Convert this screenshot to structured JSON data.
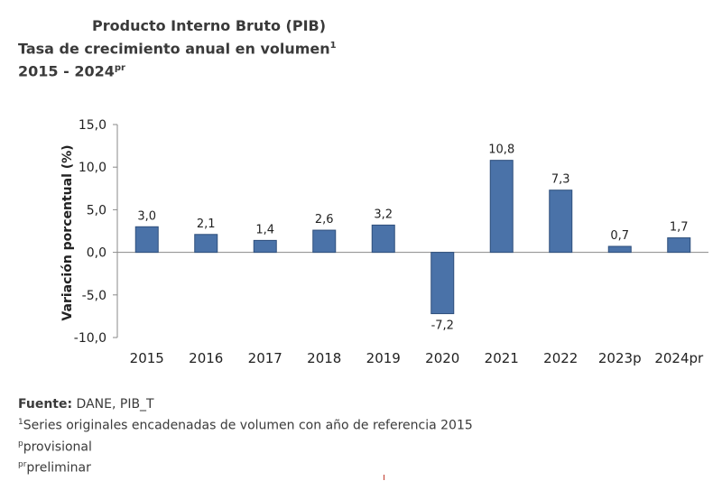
{
  "header": {
    "title_line1": "Producto Interno Bruto (PIB)",
    "title_line2": "Tasa de crecimiento anual en volumen",
    "title_line2_sup": "1",
    "title_line3": "2015 - 2024",
    "title_line3_sup": "pr"
  },
  "chart_data": {
    "type": "bar",
    "categories": [
      "2015",
      "2016",
      "2017",
      "2018",
      "2019",
      "2020",
      "2021",
      "2022",
      "2023p",
      "2024pr"
    ],
    "values": [
      3.0,
      2.1,
      1.4,
      2.6,
      3.2,
      -7.2,
      10.8,
      7.3,
      0.7,
      1.7
    ],
    "data_labels": [
      "3,0",
      "2,1",
      "1,4",
      "2,6",
      "3,2",
      "-7,2",
      "10,8",
      "7,3",
      "0,7",
      "1,7"
    ],
    "ylabel": "Variación porcentual (%)",
    "ylim": [
      -10,
      15
    ],
    "yticks": [
      15,
      10,
      5,
      0,
      -5,
      -10
    ],
    "ytick_labels": [
      "15,0",
      "10,0",
      "5,0",
      "0,0",
      "-5,0",
      "-10,0"
    ],
    "bar_color": "#4a72a8",
    "bar_edge_color": "#2e4f7c",
    "legend": "none",
    "grid": false
  },
  "footer": {
    "source_label": "Fuente:",
    "source_value": " DANE, PIB_T",
    "note1_sup": "1",
    "note1": "Series originales encadenadas de volumen con año de referencia 2015",
    "note2_sup": "p",
    "note2": "provisional",
    "note3_sup": "pr",
    "note3": "preliminar"
  }
}
